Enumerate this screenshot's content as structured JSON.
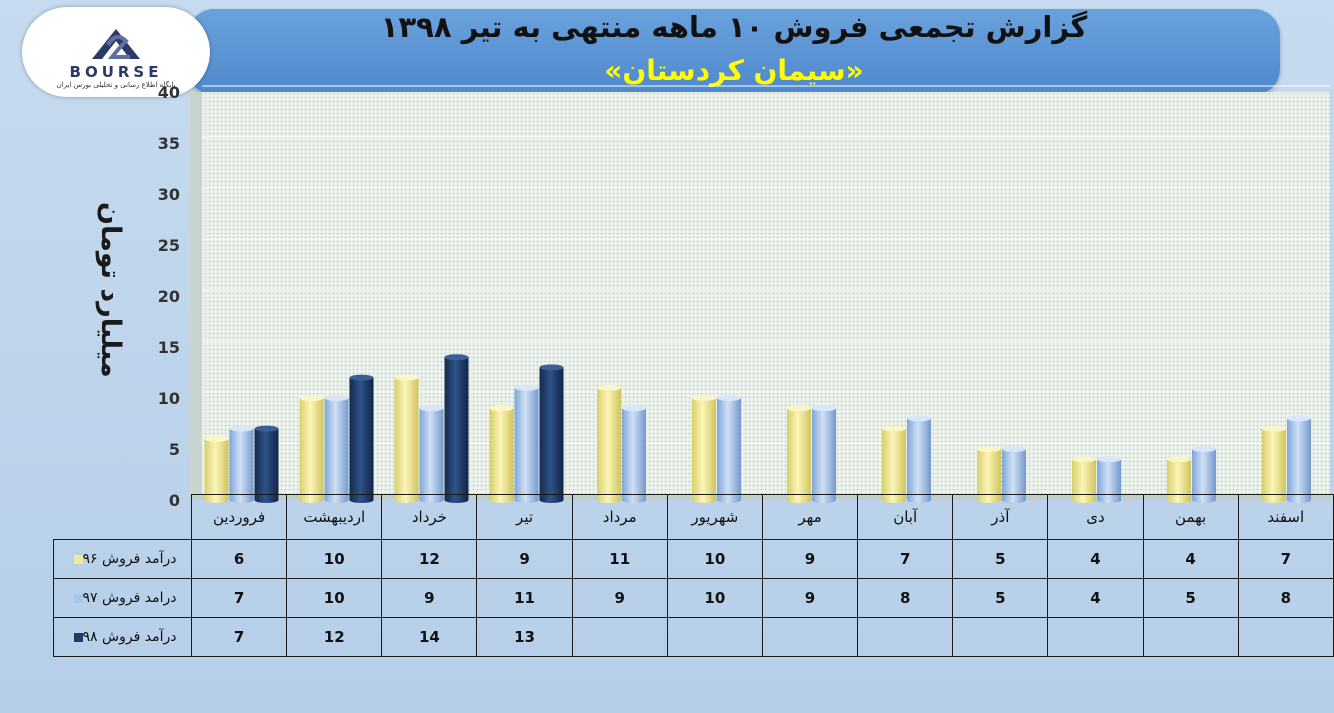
{
  "header": {
    "title": "گزارش تجمعی فروش ۱۰ ماهه منتهی به تیر ۱۳۹۸",
    "subtitle": "«سیمان کردستان»"
  },
  "logo": {
    "name": "BOURSE",
    "tagline": "پایگاه اطلاع رسانی و تحلیلی بورس ایران"
  },
  "colors": {
    "series_96": "#f2ea96",
    "series_97": "#a8c6ea",
    "series_98": "#1e3a66",
    "plot_bg": "#eef3ee",
    "grid": "#ffffff"
  },
  "chart_data": {
    "type": "bar",
    "ylabel": "میلیارد تومان",
    "ylim": [
      0,
      40
    ],
    "yticks": [
      0,
      5,
      10,
      15,
      20,
      25,
      30,
      35,
      40
    ],
    "grid": true,
    "legend": "table-left",
    "categories": [
      "فروردین",
      "اردیبهشت",
      "خرداد",
      "تیر",
      "مرداد",
      "شهریور",
      "مهر",
      "آبان",
      "آذر",
      "دی",
      "بهمن",
      "اسفند"
    ],
    "series": [
      {
        "name": "درآمد فروش ۹۶",
        "values": [
          6,
          10,
          12,
          9,
          11,
          10,
          9,
          7,
          5,
          4,
          4,
          7
        ]
      },
      {
        "name": "درامد فروش ۹۷",
        "values": [
          7,
          10,
          9,
          11,
          9,
          10,
          9,
          8,
          5,
          4,
          5,
          8
        ]
      },
      {
        "name": "درآمد فروش ۹۸",
        "values": [
          7,
          12,
          14,
          13,
          null,
          null,
          null,
          null,
          null,
          null,
          null,
          null
        ]
      }
    ]
  }
}
